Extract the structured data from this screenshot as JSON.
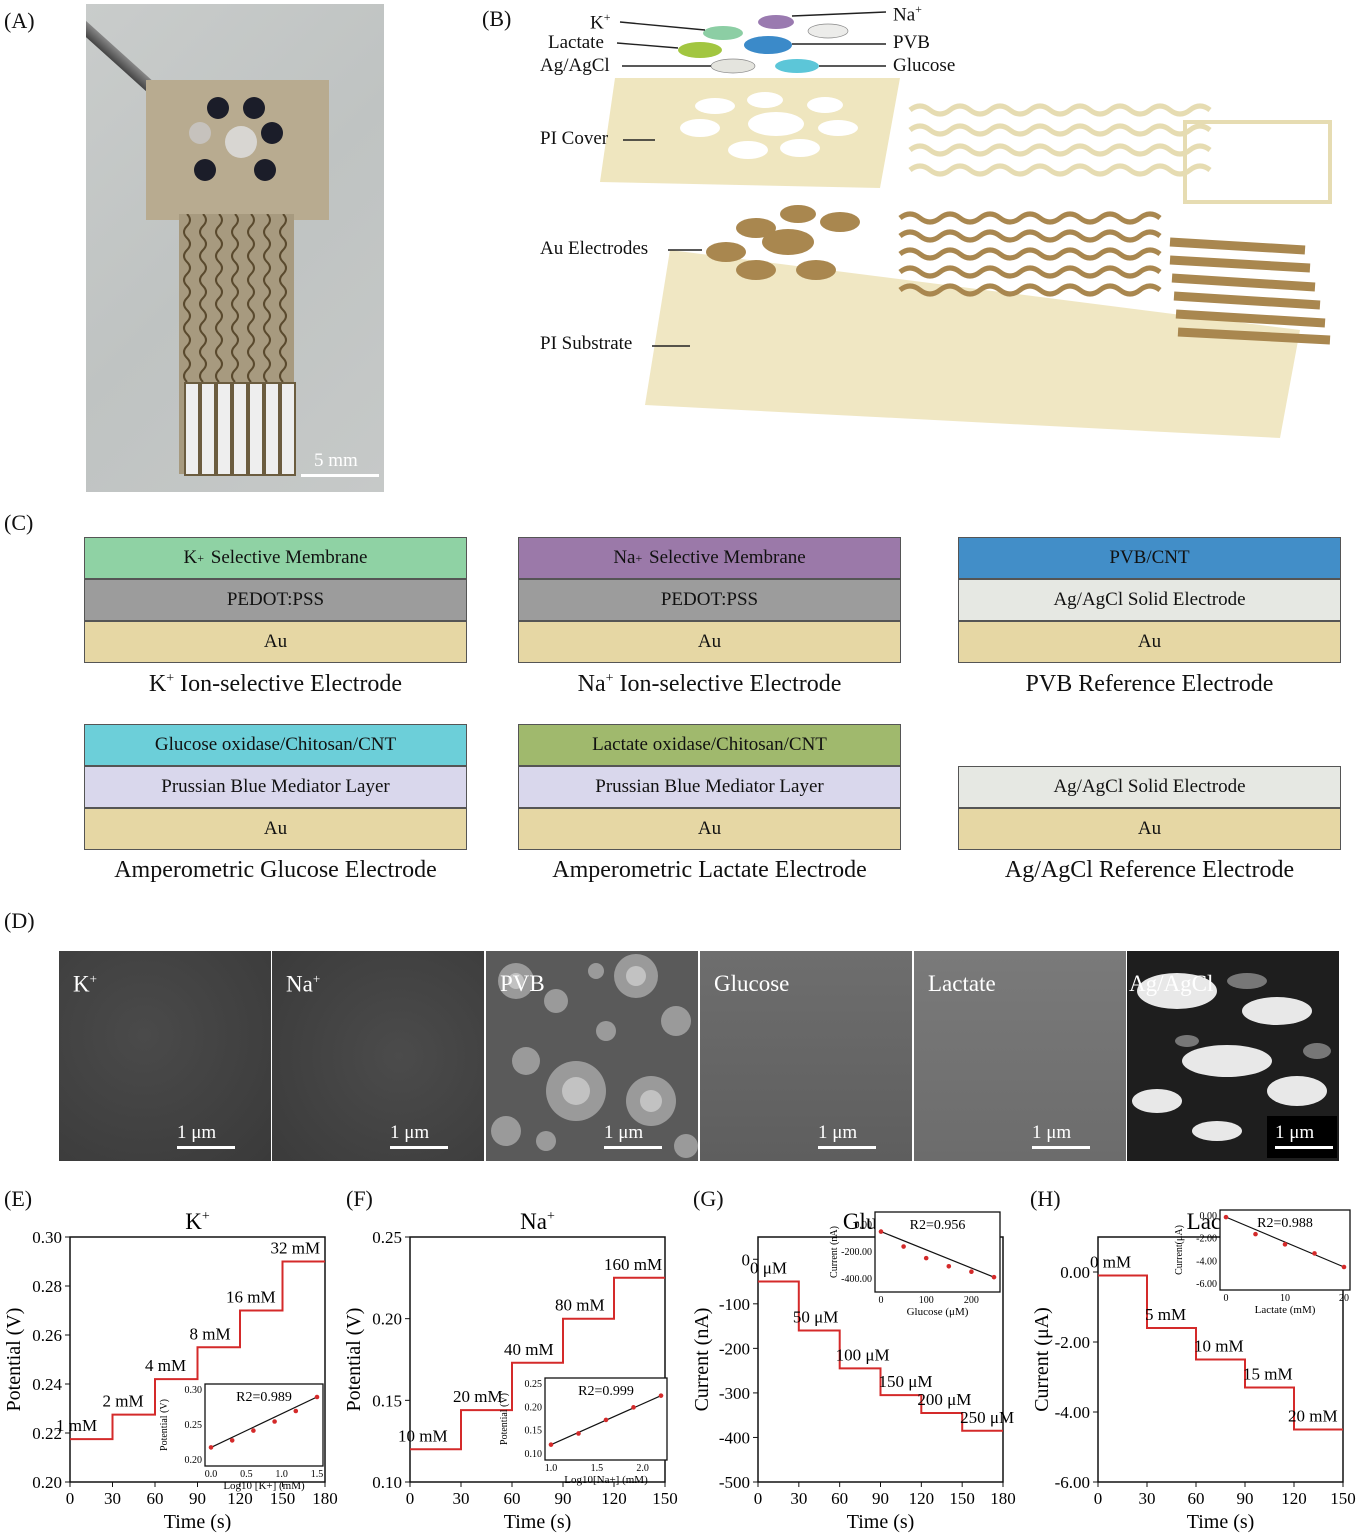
{
  "panels": {
    "a": "(A)",
    "b": "(B)",
    "c": "(C)",
    "d": "(D)",
    "e": "(E)",
    "f": "(F)",
    "g": "(G)",
    "h": "(H)"
  },
  "photo": {
    "scale": "5 mm"
  },
  "exploded": {
    "k": "K",
    "k_sup": "+",
    "na": "Na",
    "na_sup": "+",
    "lactate": "Lactate",
    "pvb": "PVB",
    "agagcl": "Ag/AgCl",
    "glucose": "Glucose",
    "pi_cover": "PI Cover",
    "au_electrodes": "Au Electrodes",
    "pi_substrate": "PI Substrate",
    "colors": {
      "k": "#8ccea4",
      "na": "#9a7ab0",
      "lactate": "#a2c640",
      "pvb": "#3b8ac9",
      "agagcl": "#e4e4de",
      "glucose": "#5cc6d8",
      "pvb_white": "#ececea",
      "gold": "#a9874f",
      "pi": "#ede3b8"
    }
  },
  "stacks": {
    "k": {
      "top": "K",
      "top_sup": "+",
      "top_rest": " Selective Membrane",
      "mid": "PEDOT:PSS",
      "bot": "Au",
      "name": "K",
      "name_sup": "+",
      "name_rest": " Ion-selective Electrode"
    },
    "na": {
      "top": "Na",
      "top_sup": "+",
      "top_rest": " Selective Membrane",
      "mid": "PEDOT:PSS",
      "bot": "Au",
      "name": "Na",
      "name_sup": "+",
      "name_rest": " Ion-selective Electrode"
    },
    "pvb": {
      "top": "PVB/CNT",
      "mid": "Ag/AgCl Solid Electrode",
      "bot": "Au",
      "name": "PVB Reference Electrode"
    },
    "glu": {
      "top": "Glucose oxidase/Chitosan/CNT",
      "mid": "Prussian Blue Mediator Layer",
      "bot": "Au",
      "name": "Amperometric Glucose Electrode"
    },
    "lac": {
      "top": "Lactate oxidase/Chitosan/CNT",
      "mid": "Prussian Blue Mediator Layer",
      "bot": "Au",
      "name": "Amperometric Lactate Electrode"
    },
    "ag": {
      "mid": "Ag/AgCl Solid Electrode",
      "bot": "Au",
      "name": "Ag/AgCl Reference Electrode"
    },
    "colors": {
      "k": "#8fd2a4",
      "na": "#9b79a9",
      "pvb": "#428ec8",
      "pedot": "#9c9c9c",
      "agagcl": "#e6e8e3",
      "au": "#e6d7a4",
      "glu": "#6ccfd9",
      "lac": "#a0b96d",
      "pb": "#d9d7ec"
    }
  },
  "sem": [
    {
      "name": "K",
      "sup": "+",
      "scale": "1 μm"
    },
    {
      "name": "Na",
      "sup": "+",
      "scale": "1 μm"
    },
    {
      "name": "PVB",
      "sup": "",
      "scale": "1 μm"
    },
    {
      "name": "Glucose",
      "sup": "",
      "scale": "1 μm"
    },
    {
      "name": "Lactate",
      "sup": "",
      "scale": "1 μm"
    },
    {
      "name": "Ag/AgCl",
      "sup": "",
      "scale": "1 μm"
    }
  ],
  "chart_data": [
    {
      "type": "line",
      "title": "K+",
      "xlabel": "Time (s)",
      "ylabel": "Potential (V)",
      "xlim": [
        0,
        180
      ],
      "ylim": [
        0.2,
        0.3
      ],
      "xticks": [
        "0",
        "30",
        "60",
        "90",
        "120",
        "150",
        "180"
      ],
      "yticks": [
        "0.20",
        "0.22",
        "0.24",
        "0.26",
        "0.28",
        "0.30"
      ],
      "steps": [
        {
          "t0": 0,
          "t1": 30,
          "v": 0.2175,
          "label": "1 mM"
        },
        {
          "t0": 30,
          "t1": 60,
          "v": 0.2275,
          "label": "2 mM"
        },
        {
          "t0": 60,
          "t1": 90,
          "v": 0.242,
          "label": "4 mM"
        },
        {
          "t0": 90,
          "t1": 120,
          "v": 0.255,
          "label": "8 mM"
        },
        {
          "t0": 120,
          "t1": 150,
          "v": 0.27,
          "label": "16 mM"
        },
        {
          "t0": 150,
          "t1": 180,
          "v": 0.29,
          "label": "32 mM"
        }
      ],
      "inset": {
        "r2": "R2=0.989",
        "xlabel": "Log10 [K+] (mM)",
        "ylabel": "Potential (V)",
        "xticks": [
          "0.0",
          "0.5",
          "1.0",
          "1.5"
        ],
        "yticks": [
          "0.20",
          "0.25",
          "0.30"
        ],
        "xlim": [
          0,
          1.5
        ],
        "ylim": [
          0.2,
          0.3
        ],
        "points": [
          [
            0,
            0.218
          ],
          [
            0.3,
            0.228
          ],
          [
            0.6,
            0.242
          ],
          [
            0.9,
            0.255
          ],
          [
            1.2,
            0.27
          ],
          [
            1.5,
            0.29
          ]
        ]
      }
    },
    {
      "type": "line",
      "title": "Na+",
      "xlabel": "Time (s)",
      "ylabel": "Potential (V)",
      "xlim": [
        0,
        150
      ],
      "ylim": [
        0.1,
        0.25
      ],
      "xticks": [
        "0",
        "30",
        "60",
        "90",
        "120",
        "150"
      ],
      "yticks": [
        "0.10",
        "0.15",
        "0.20",
        "0.25"
      ],
      "steps": [
        {
          "t0": 0,
          "t1": 30,
          "v": 0.12,
          "label": "10 mM"
        },
        {
          "t0": 30,
          "t1": 60,
          "v": 0.144,
          "label": "20 mM"
        },
        {
          "t0": 60,
          "t1": 90,
          "v": 0.173,
          "label": "40 mM"
        },
        {
          "t0": 90,
          "t1": 120,
          "v": 0.2,
          "label": "80 mM"
        },
        {
          "t0": 120,
          "t1": 150,
          "v": 0.225,
          "label": "160 mM"
        }
      ],
      "inset": {
        "r2": "R2=0.999",
        "xlabel": "Log10[Na+] (mM)",
        "ylabel": "Potential (V)",
        "xticks": [
          "1.0",
          "1.5",
          "2.0"
        ],
        "yticks": [
          "0.10",
          "0.15",
          "0.20",
          "0.25"
        ],
        "xlim": [
          1.0,
          2.2
        ],
        "ylim": [
          0.1,
          0.25
        ],
        "points": [
          [
            1.0,
            0.12
          ],
          [
            1.3,
            0.144
          ],
          [
            1.6,
            0.173
          ],
          [
            1.9,
            0.2
          ],
          [
            2.2,
            0.225
          ]
        ]
      }
    },
    {
      "type": "line",
      "title": "Glucose",
      "xlabel": "Time (s)",
      "ylabel": "Current (nA)",
      "xlim": [
        0,
        180
      ],
      "ylim": [
        -500,
        50
      ],
      "xticks": [
        "0",
        "30",
        "60",
        "90",
        "120",
        "150",
        "180"
      ],
      "yticks": [
        "0",
        "-100",
        "-200",
        "-300",
        "-400",
        "-500"
      ],
      "steps": [
        {
          "t0": 0,
          "t1": 30,
          "v": -50,
          "label": "0 μM"
        },
        {
          "t0": 30,
          "t1": 60,
          "v": -160,
          "label": "50 μM"
        },
        {
          "t0": 60,
          "t1": 90,
          "v": -245,
          "label": "100 μM"
        },
        {
          "t0": 90,
          "t1": 120,
          "v": -305,
          "label": "150 μM"
        },
        {
          "t0": 120,
          "t1": 150,
          "v": -345,
          "label": "200 μM"
        },
        {
          "t0": 150,
          "t1": 180,
          "v": -385,
          "label": "250 μM"
        }
      ],
      "inset": {
        "r2": "R2=0.956",
        "xlabel": "Glucose (μM)",
        "ylabel": "Current (nA)",
        "xticks": [
          "0",
          "100",
          "200"
        ],
        "yticks": [
          "0.00",
          "-200.00",
          "-400.00"
        ],
        "xlim": [
          0,
          250
        ],
        "ylim": [
          -450,
          50
        ],
        "points": [
          [
            0,
            -50
          ],
          [
            50,
            -160
          ],
          [
            100,
            -245
          ],
          [
            150,
            -305
          ],
          [
            200,
            -345
          ],
          [
            250,
            -385
          ]
        ]
      }
    },
    {
      "type": "line",
      "title": "Lactate",
      "xlabel": "Time (s)",
      "ylabel": "Current (μA)",
      "xlim": [
        0,
        150
      ],
      "ylim": [
        -6,
        1
      ],
      "xticks": [
        "0",
        "30",
        "60",
        "90",
        "120",
        "150"
      ],
      "yticks": [
        "0.00",
        "-2.00",
        "-4.00",
        "-6.00"
      ],
      "steps": [
        {
          "t0": 0,
          "t1": 30,
          "v": -0.1,
          "label": "0 mM"
        },
        {
          "t0": 30,
          "t1": 60,
          "v": -1.6,
          "label": "5 mM"
        },
        {
          "t0": 60,
          "t1": 90,
          "v": -2.5,
          "label": "10 mM"
        },
        {
          "t0": 90,
          "t1": 120,
          "v": -3.3,
          "label": "15 mM"
        },
        {
          "t0": 120,
          "t1": 150,
          "v": -4.5,
          "label": "20 mM"
        }
      ],
      "inset": {
        "r2": "R2=0.988",
        "xlabel": "Lactate (mM)",
        "ylabel": "Current(μA)",
        "xticks": [
          "0",
          "10",
          "20"
        ],
        "yticks": [
          "0.00",
          "-2.00",
          "-4.00",
          "-6.00"
        ],
        "xlim": [
          0,
          20
        ],
        "ylim": [
          -6,
          0
        ],
        "points": [
          [
            0,
            -0.1
          ],
          [
            5,
            -1.6
          ],
          [
            10,
            -2.5
          ],
          [
            15,
            -3.3
          ],
          [
            20,
            -4.5
          ]
        ]
      }
    }
  ],
  "chart_colors": {
    "trace": "#d42a2a",
    "axis": "#111"
  }
}
